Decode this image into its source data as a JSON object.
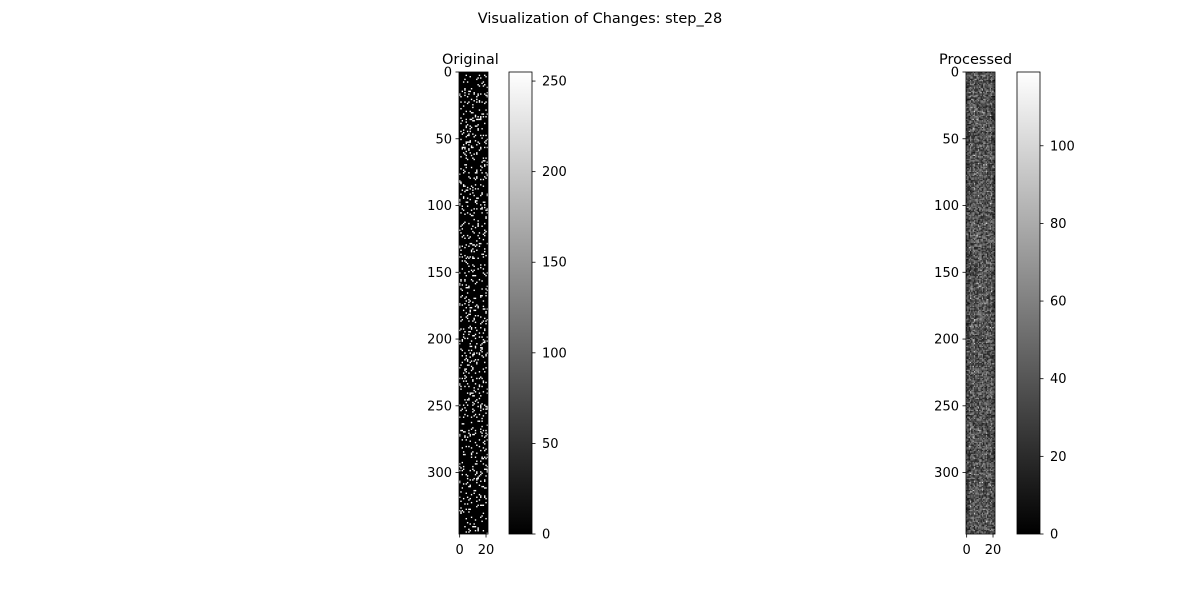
{
  "figure": {
    "title": "Visualization of Changes: step_28"
  },
  "chart_data": [
    {
      "type": "heatmap",
      "title": "Original",
      "colormap": "gray",
      "image_rows": 346,
      "image_cols": 22,
      "x_ticks": [
        0,
        20
      ],
      "y_ticks": [
        0,
        50,
        100,
        150,
        200,
        250,
        300
      ],
      "ylim": [
        346,
        0
      ],
      "xlim": [
        -0.5,
        21.5
      ],
      "colorbar": {
        "min": 0,
        "max": 255,
        "ticks": [
          0,
          50,
          100,
          150,
          200,
          250
        ]
      },
      "content": "binary-like sparse pixels, values 0 or 255"
    },
    {
      "type": "heatmap",
      "title": "Processed",
      "colormap": "gray",
      "image_rows": 346,
      "image_cols": 22,
      "x_ticks": [
        0,
        20
      ],
      "y_ticks": [
        0,
        50,
        100,
        150,
        200,
        250,
        300
      ],
      "ylim": [
        346,
        0
      ],
      "xlim": [
        -0.5,
        21.5
      ],
      "colorbar": {
        "min": 0,
        "max": 119,
        "ticks": [
          0,
          20,
          40,
          60,
          80,
          100
        ]
      },
      "content": "dense low-intensity gray noise"
    }
  ]
}
